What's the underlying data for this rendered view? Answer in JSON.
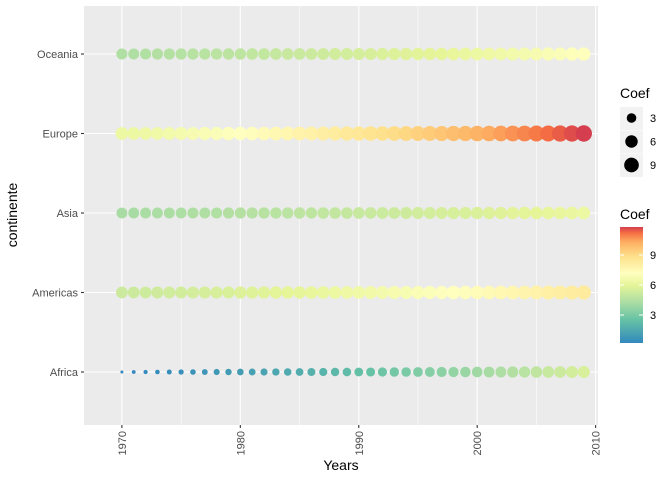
{
  "chart_data": {
    "type": "scatter",
    "title": "",
    "xlabel": "Years",
    "ylabel": "continente",
    "xlim": [
      1966.8,
      2010.2
    ],
    "x_ticks": [
      1970,
      1980,
      1990,
      2000,
      2010
    ],
    "categories": [
      "Africa",
      "Americas",
      "Asia",
      "Europe",
      "Oceania"
    ],
    "x": [
      1970,
      1971,
      1972,
      1973,
      1974,
      1975,
      1976,
      1977,
      1978,
      1979,
      1980,
      1981,
      1982,
      1983,
      1984,
      1985,
      1986,
      1987,
      1988,
      1989,
      1990,
      1991,
      1992,
      1993,
      1994,
      1995,
      1996,
      1997,
      1998,
      1999,
      2000,
      2001,
      2002,
      2003,
      2004,
      2005,
      2006,
      2007,
      2008,
      2009
    ],
    "series": [
      {
        "category": "Africa",
        "start": 0.2,
        "end": 5.6
      },
      {
        "category": "Americas",
        "start": 5.2,
        "end": 8.3
      },
      {
        "category": "Asia",
        "start": 4.2,
        "end": 6.3
      },
      {
        "category": "Europe",
        "start": 6.3,
        "end": 11.8
      },
      {
        "category": "Oceania",
        "start": 4.4,
        "end": 7.1
      }
    ],
    "size_legend": {
      "title": "Coef",
      "values": [
        3,
        6,
        9
      ]
    },
    "color_legend": {
      "title": "Coef",
      "ticks": [
        3,
        6,
        9
      ],
      "range": [
        0.2,
        11.8
      ]
    },
    "grid": true,
    "legend_position": "right"
  }
}
